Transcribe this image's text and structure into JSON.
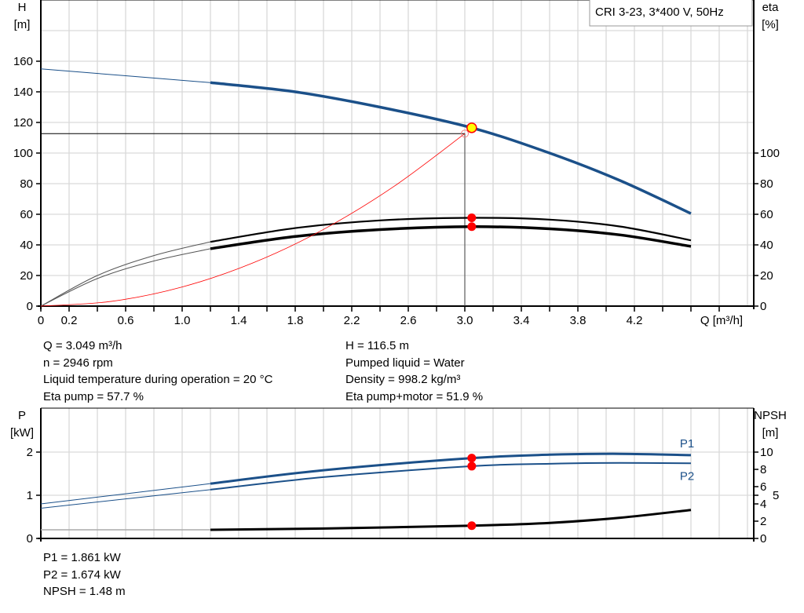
{
  "chart_data": [
    {
      "type": "line",
      "title": "CRI 3-23, 3*400 V, 50Hz",
      "xlabel": "Q [m³/h]",
      "ylabel": "H\n[m]",
      "y2label": "eta\n[%]",
      "xlim": [
        0,
        5.0
      ],
      "ylim": [
        0,
        200
      ],
      "y2lim": [
        0,
        200
      ],
      "grid": true,
      "x_tick_labels": [
        "0",
        "0.2",
        "0.6",
        "1.0",
        "1.4",
        "1.8",
        "2.2",
        "2.6",
        "3.0",
        "3.4",
        "3.8",
        "4.2"
      ],
      "y_ticks": [
        0,
        20,
        40,
        60,
        80,
        100,
        120,
        140,
        160
      ],
      "y2_ticks": [
        0,
        20,
        40,
        60,
        80,
        100
      ],
      "duty_range_start": 1.2,
      "series": [
        {
          "key": "head",
          "axis": "left",
          "color": "#1b5089",
          "x": [
            0,
            0.6,
            1.2,
            1.8,
            2.4,
            3.049,
            3.6,
            4.1,
            4.6
          ],
          "y": [
            155,
            150.5,
            146,
            140,
            130,
            116.5,
            100,
            82,
            60.5
          ]
        },
        {
          "key": "eta_pump",
          "axis": "right",
          "color": "#000000",
          "x": [
            0,
            0.4,
            0.8,
            1.2,
            1.8,
            2.4,
            3.049,
            3.6,
            4.1,
            4.6
          ],
          "y": [
            0,
            20,
            33,
            42,
            51,
            56,
            57.7,
            56.5,
            52,
            43
          ]
        },
        {
          "key": "eta_pump_motor",
          "axis": "right",
          "color": "#000000",
          "x": [
            0,
            0.4,
            0.8,
            1.2,
            1.8,
            2.4,
            3.049,
            3.6,
            4.1,
            4.6
          ],
          "y": [
            0,
            18,
            29.5,
            37.5,
            45.5,
            50,
            51.9,
            50.5,
            46.5,
            39
          ]
        },
        {
          "key": "system_curve",
          "axis": "left",
          "color": "#ff0000",
          "x": [
            0,
            0.5,
            1.0,
            1.5,
            2.0,
            2.5,
            3.0
          ],
          "y": [
            0,
            3.1,
            12.5,
            28.2,
            50.1,
            78.3,
            112.7
          ]
        }
      ],
      "operating_point": {
        "q": 3.049,
        "h": 116.5,
        "eta_pump": 57.7,
        "eta_pump_motor": 51.9
      },
      "system_point": {
        "q": 3.0,
        "h": 112.7
      }
    },
    {
      "type": "line",
      "ylabel": "P\n[kW]",
      "y2label": "NPSH\n[m]",
      "xlim": [
        0,
        5.0
      ],
      "ylim": [
        0,
        3.0
      ],
      "y2lim": [
        0,
        15
      ],
      "grid": true,
      "y_ticks": [
        0,
        1,
        2
      ],
      "y2_ticks": [
        0,
        2,
        4,
        5,
        6,
        8,
        10
      ],
      "duty_range_start": 1.2,
      "series": [
        {
          "key": "p1",
          "name": "P1",
          "axis": "left",
          "color": "#1b5089",
          "x": [
            0,
            1.2,
            2.0,
            3.049,
            3.6,
            4.1,
            4.6
          ],
          "y": [
            0.8,
            1.27,
            1.58,
            1.861,
            1.94,
            1.96,
            1.93
          ]
        },
        {
          "key": "p2",
          "name": "P2",
          "axis": "left",
          "color": "#1b5089",
          "x": [
            0,
            1.2,
            2.0,
            3.049,
            3.6,
            4.1,
            4.6
          ],
          "y": [
            0.7,
            1.13,
            1.42,
            1.674,
            1.73,
            1.75,
            1.74
          ]
        },
        {
          "key": "npsh",
          "axis": "right",
          "color": "#000000",
          "x": [
            0,
            1.2,
            2.0,
            3.049,
            3.6,
            4.1,
            4.6
          ],
          "y": [
            1.0,
            1.0,
            1.15,
            1.48,
            1.8,
            2.4,
            3.3
          ]
        }
      ],
      "operating_point": {
        "q": 3.049,
        "p1": 1.861,
        "p2": 1.674,
        "npsh": 1.48
      }
    }
  ],
  "info": {
    "left": [
      "Q = 3.049 m³/h",
      "n = 2946 rpm",
      "Liquid temperature during operation = 20 °C",
      "Eta pump = 57.7 %"
    ],
    "right": [
      "H = 116.5 m",
      "Pumped liquid = Water",
      "Density = 998.2 kg/m³",
      "Eta pump+motor = 51.9 %"
    ],
    "bottom": [
      "P1 = 1.861 kW",
      "P2 = 1.674 kW",
      "NPSH = 1.48 m"
    ]
  }
}
